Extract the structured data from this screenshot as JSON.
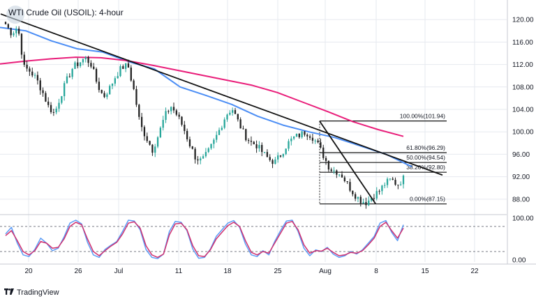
{
  "header": {
    "title": "WTI Crude Oil (USOIL): 4-hour"
  },
  "branding": {
    "name": "TradingView",
    "logo_icon": "tradingview-logo-icon"
  },
  "colors": {
    "up": "#26a69a",
    "down": "#222222",
    "ma_fast": "#4c8ef5",
    "ma_slow": "#e91e7a",
    "stoch_k": "#5b9cf6",
    "stoch_d": "#d0306f",
    "grid": "#e6e9ef",
    "line": "#111111"
  },
  "chart_data": [
    {
      "type": "candlestick",
      "title": "WTI Crude Oil (USOIL): 4-hour",
      "x_ticks": [
        "20",
        "26",
        "Jul",
        "11",
        "18",
        "25",
        "Aug",
        "8",
        "15",
        "22"
      ],
      "y_ticks": [
        "120.00",
        "116.00",
        "112.00",
        "108.00",
        "104.00",
        "100.00",
        "96.00",
        "92.00",
        "88.00"
      ],
      "ylim": [
        85.5,
        122.5
      ],
      "price_path": [
        119.2,
        117.5,
        118.8,
        111.5,
        110.8,
        109.5,
        107.2,
        104.5,
        103.2,
        106.5,
        109.2,
        111.5,
        112.3,
        113.2,
        112.0,
        108.4,
        106.2,
        107.8,
        110.0,
        111.5,
        111.8,
        107.2,
        101.2,
        99.0,
        96.8,
        99.5,
        102.8,
        104.6,
        103.0,
        100.9,
        98.0,
        95.5,
        94.8,
        96.2,
        98.2,
        100.5,
        103.0,
        104.2,
        101.8,
        99.5,
        98.2,
        97.6,
        96.3,
        95.1,
        94.6,
        96.0,
        97.8,
        98.9,
        99.4,
        100.0,
        99.3,
        97.8,
        95.6,
        93.4,
        93.0,
        92.2,
        90.4,
        88.9,
        87.8,
        87.4,
        88.6,
        89.4,
        90.8,
        91.5,
        90.6,
        91.7
      ],
      "moving_averages": [
        {
          "color": "#4c8ef5",
          "values": [
            118.6,
            118.0,
            116.2,
            114.8,
            114.2,
            112.5,
            111.2,
            108.0,
            106.5,
            104.9,
            102.8,
            101.2,
            100.0,
            99.0,
            97.5,
            96.0,
            93.8
          ]
        },
        {
          "color": "#e91e7a",
          "values": [
            112.1,
            112.6,
            113.0,
            113.3,
            113.2,
            112.7,
            111.9,
            111.0,
            110.1,
            109.2,
            108.3,
            107.0,
            105.3,
            103.6,
            101.8,
            100.4,
            99.2
          ]
        }
      ],
      "trendlines": [
        {
          "from": [
            1,
            121.0
          ],
          "to": [
            634,
            92.3
          ]
        },
        {
          "from": [
            458,
            101.9
          ],
          "to": [
            538,
            87.2
          ]
        }
      ],
      "fibonacci": {
        "levels": [
          {
            "ratio": "100.00%",
            "value": "101.94",
            "label": "100.00%(101.94)"
          },
          {
            "ratio": "61.80%",
            "value": "96.29",
            "label": "61.80%(96.29)"
          },
          {
            "ratio": "50.00%",
            "value": "94.54",
            "label": "50.00%(94.54)"
          },
          {
            "ratio": "38.20%",
            "value": "92.80",
            "label": "38.20%(92.80)"
          },
          {
            "ratio": "0.00%",
            "value": "87.15",
            "label": "0.00%(87.15)"
          }
        ]
      }
    },
    {
      "type": "line",
      "y_ticks": [
        "100.00",
        "0.00"
      ],
      "ylim": [
        -5,
        105
      ],
      "levels": [
        80,
        20
      ],
      "series": [
        {
          "color": "#5b9cf6",
          "values": [
            62,
            78,
            40,
            12,
            8,
            25,
            52,
            40,
            22,
            28,
            55,
            88,
            95,
            86,
            42,
            12,
            6,
            25,
            35,
            44,
            68,
            95,
            93,
            72,
            25,
            6,
            3,
            14,
            68,
            92,
            90,
            70,
            26,
            4,
            6,
            26,
            56,
            72,
            88,
            94,
            78,
            38,
            12,
            8,
            22,
            12,
            44,
            70,
            93,
            95,
            68,
            28,
            10,
            24,
            20,
            30,
            14,
            6,
            10,
            20,
            14,
            24,
            40,
            56,
            88,
            94,
            66,
            46,
            84
          ]
        },
        {
          "color": "#d0306f",
          "values": [
            58,
            70,
            46,
            20,
            12,
            22,
            44,
            40,
            28,
            30,
            50,
            80,
            90,
            84,
            50,
            20,
            10,
            22,
            33,
            42,
            62,
            88,
            91,
            76,
            34,
            12,
            6,
            14,
            60,
            86,
            88,
            72,
            34,
            10,
            8,
            24,
            50,
            66,
            82,
            90,
            80,
            46,
            18,
            12,
            20,
            16,
            40,
            64,
            88,
            92,
            72,
            36,
            16,
            22,
            21,
            28,
            18,
            10,
            12,
            18,
            16,
            22,
            36,
            52,
            80,
            90,
            70,
            52,
            76
          ]
        }
      ]
    }
  ]
}
